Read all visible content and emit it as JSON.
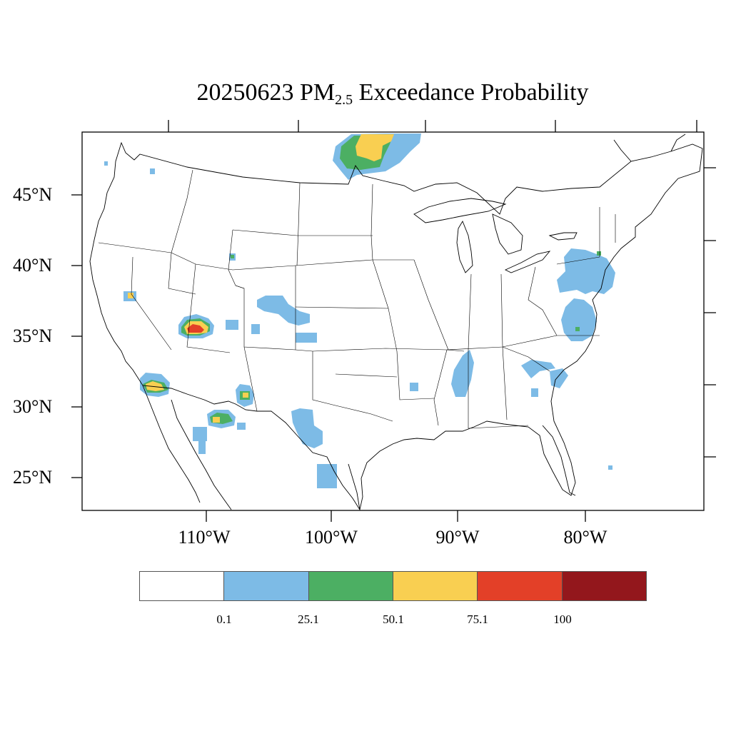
{
  "title": {
    "date": "20250623",
    "species": "PM",
    "subscript": "2.5",
    "rest": "Exceedance Probability"
  },
  "lat_labels": [
    "45°N",
    "40°N",
    "35°N",
    "30°N",
    "25°N"
  ],
  "lon_labels": [
    "110°W",
    "100°W",
    "90°W",
    "80°W"
  ],
  "colorbar": {
    "colors": [
      "#ffffff",
      "#7dbbe6",
      "#4caf63",
      "#f9cf51",
      "#e34028",
      "#93171c"
    ],
    "labels": [
      "0.1",
      "25.1",
      "50.1",
      "75.1",
      "100"
    ]
  },
  "legend_meaning": {
    "white": "below 0.1",
    "blue": "0.1–25.1",
    "green": "25.1–50.1",
    "yellow": "50.1–75.1",
    "red": "75.1–100",
    "dark_red": "100"
  }
}
